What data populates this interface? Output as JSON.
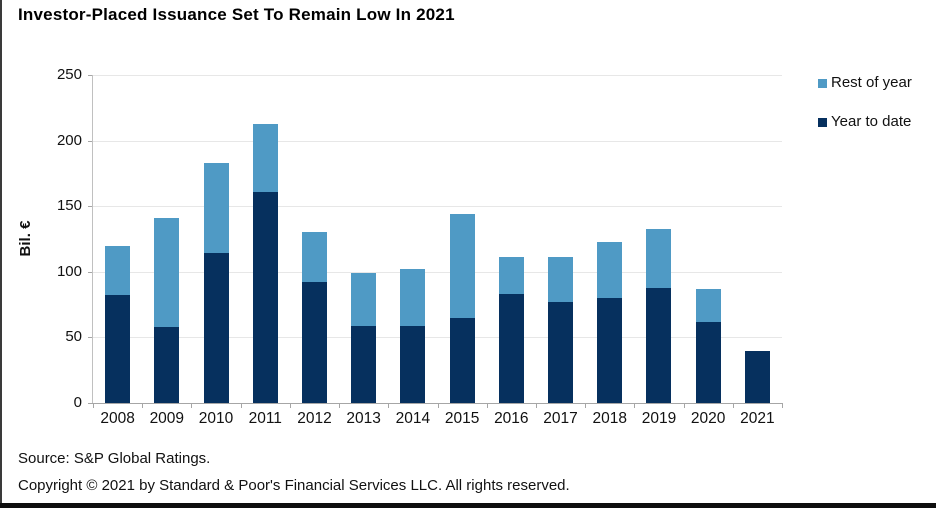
{
  "page": {
    "title": "Investor-Placed Issuance Set To Remain Low In 2021",
    "footer": {
      "source": "Source: S&P Global Ratings.",
      "copyright": "Copyright © 2021 by Standard & Poor's Financial Services LLC. All rights reserved."
    }
  },
  "chart_data": {
    "type": "bar",
    "stacked": true,
    "title": "Investor-Placed Issuance Set To Remain Low In 2021",
    "xlabel": "",
    "ylabel": "Bil. €",
    "ylim": [
      0,
      250
    ],
    "yticks": [
      0,
      50,
      100,
      150,
      200,
      250
    ],
    "grid": "horizontal",
    "legend_position": "top-right",
    "categories": [
      "2008",
      "2009",
      "2010",
      "2011",
      "2012",
      "2013",
      "2014",
      "2015",
      "2016",
      "2017",
      "2018",
      "2019",
      "2020",
      "2021"
    ],
    "series": [
      {
        "name": "Year to date",
        "color": "#06305e",
        "values": [
          82,
          58,
          114,
          161,
          92,
          59,
          59,
          65,
          83,
          77,
          80,
          88,
          62,
          40
        ]
      },
      {
        "name": "Rest of year",
        "color": "#4f9ac5",
        "values": [
          38,
          83,
          69,
          52,
          38,
          40,
          43,
          79,
          28,
          34,
          43,
          45,
          25,
          0
        ]
      }
    ],
    "totals": [
      120,
      141,
      183,
      213,
      130,
      99,
      102,
      144,
      111,
      111,
      123,
      133,
      87,
      40
    ],
    "legend": [
      {
        "label": "Rest of year",
        "color": "#4f9ac5"
      },
      {
        "label": "Year to date",
        "color": "#06305e"
      }
    ],
    "style_colors": {
      "gridline": "#e7e7e7",
      "axis": "#a6a6a6",
      "text": "#111111",
      "background": "#ffffff"
    }
  }
}
